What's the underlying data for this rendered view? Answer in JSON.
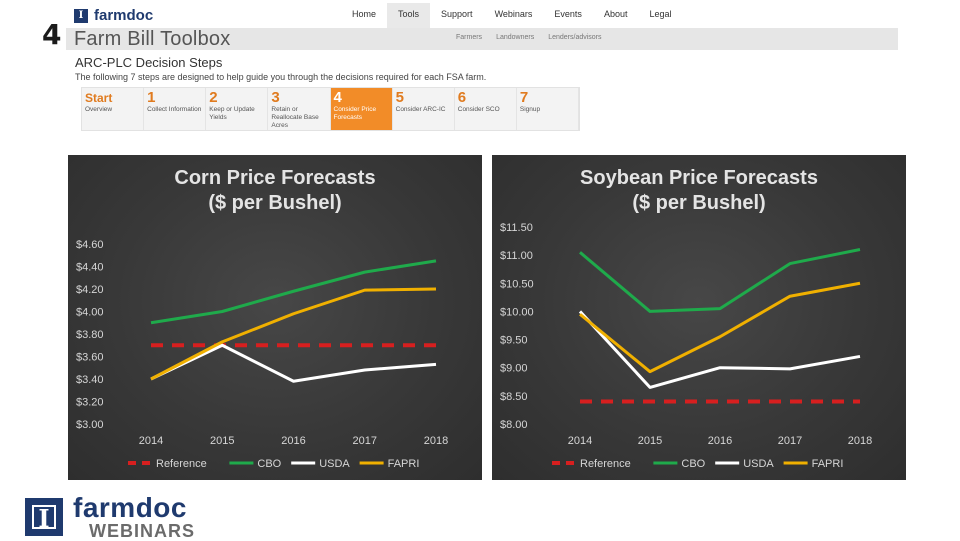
{
  "slide_number": "4",
  "site": {
    "logo_text": "farmdoc",
    "nav": [
      "Home",
      "Tools",
      "Support",
      "Webinars",
      "Events",
      "About",
      "Legal"
    ],
    "active_nav": "Tools",
    "toolbox_title": "Farm Bill Toolbox",
    "toolbox_links": [
      "Farmers",
      "Landowners",
      "Lenders/advisors"
    ]
  },
  "decision": {
    "title": "ARC-PLC Decision Steps",
    "subtitle": "The following 7 steps are designed to help guide you through the decisions required for each FSA farm.",
    "steps": [
      {
        "num": "Start",
        "label": "Overview"
      },
      {
        "num": "1",
        "label": "Collect Information"
      },
      {
        "num": "2",
        "label": "Keep or Update Yields"
      },
      {
        "num": "3",
        "label": "Retain or Reallocate Base Acres"
      },
      {
        "num": "4",
        "label": "Consider Price Forecasts"
      },
      {
        "num": "5",
        "label": "Consider ARC-IC"
      },
      {
        "num": "6",
        "label": "Consider SCO"
      },
      {
        "num": "7",
        "label": "Signup"
      }
    ],
    "active_step": "4"
  },
  "colors": {
    "reference": "#d71f1f",
    "cbo": "#1faa4b",
    "usda": "#ffffff",
    "fapri": "#f0b000",
    "accent": "#f28c28",
    "brand": "#1f3a6e"
  },
  "chart_data": [
    {
      "type": "line",
      "title": "Corn Price Forecasts",
      "subtitle": "($ per Bushel)",
      "x": [
        "2014",
        "2015",
        "2016",
        "2017",
        "2018"
      ],
      "ylim": [
        3.0,
        4.6
      ],
      "yticks": [
        "$3.00",
        "$3.20",
        "$3.40",
        "$3.60",
        "$3.80",
        "$4.00",
        "$4.20",
        "$4.40",
        "$4.60"
      ],
      "grid": false,
      "legend_position": "bottom",
      "series": [
        {
          "name": "Reference",
          "values": [
            3.7,
            3.7,
            3.7,
            3.7,
            3.7
          ],
          "style": "dashed"
        },
        {
          "name": "CBO",
          "values": [
            3.9,
            4.0,
            4.18,
            4.35,
            4.45
          ]
        },
        {
          "name": "USDA",
          "values": [
            3.4,
            3.7,
            3.38,
            3.48,
            3.53
          ]
        },
        {
          "name": "FAPRI",
          "values": [
            3.4,
            3.73,
            3.98,
            4.19,
            4.2
          ]
        }
      ]
    },
    {
      "type": "line",
      "title": "Soybean Price Forecasts",
      "subtitle": "($ per Bushel)",
      "x": [
        "2014",
        "2015",
        "2016",
        "2017",
        "2018"
      ],
      "ylim": [
        8.0,
        11.5
      ],
      "yticks": [
        "$8.00",
        "$8.50",
        "$9.00",
        "$9.50",
        "$10.00",
        "$10.50",
        "$11.00",
        "$11.50"
      ],
      "grid": false,
      "legend_position": "bottom",
      "series": [
        {
          "name": "Reference",
          "values": [
            8.4,
            8.4,
            8.4,
            8.4,
            8.4
          ],
          "style": "dashed"
        },
        {
          "name": "CBO",
          "values": [
            11.05,
            10.0,
            10.05,
            10.85,
            11.1
          ]
        },
        {
          "name": "USDA",
          "values": [
            10.0,
            8.65,
            9.0,
            8.98,
            9.2
          ]
        },
        {
          "name": "FAPRI",
          "values": [
            9.95,
            8.93,
            9.55,
            10.27,
            10.5
          ]
        }
      ]
    }
  ],
  "footer": {
    "logo_glyph": "I",
    "line1": "farmdoc",
    "line2": "WEBINARS"
  }
}
